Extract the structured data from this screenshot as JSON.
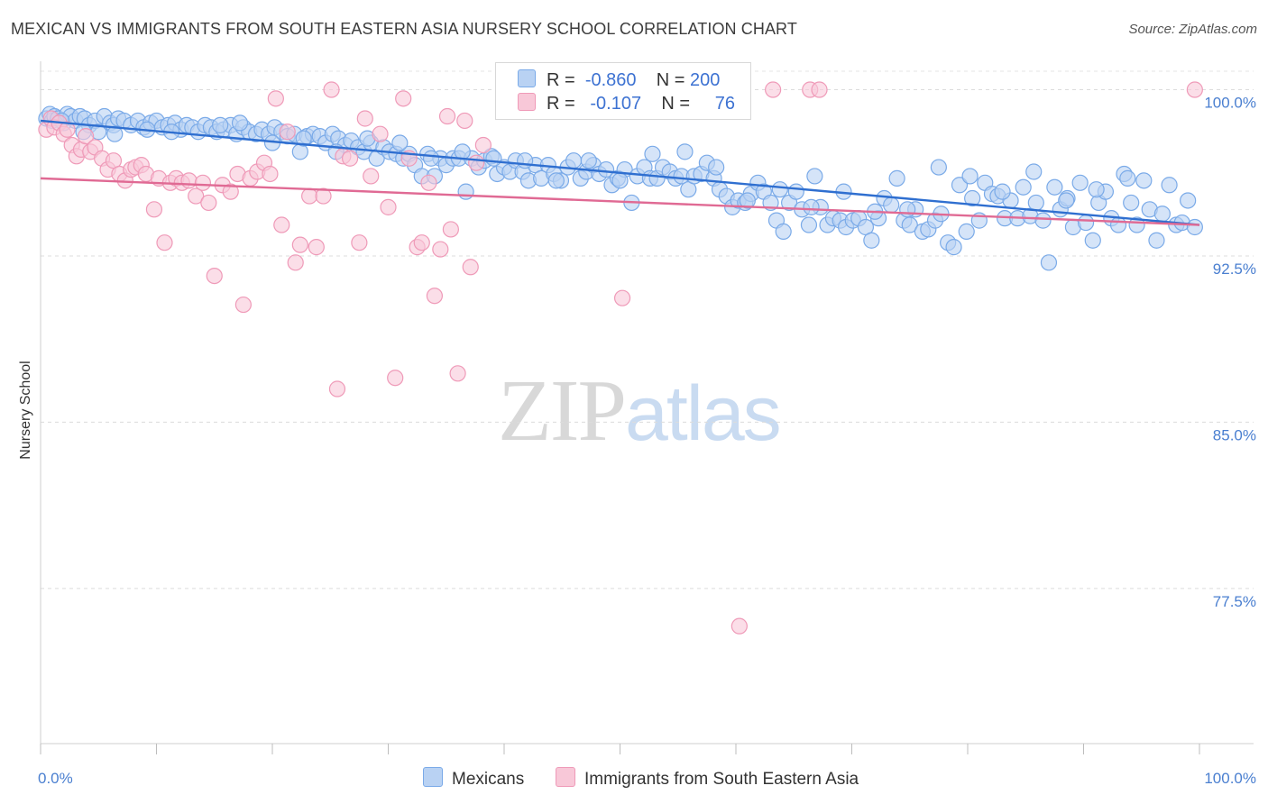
{
  "chart_data": {
    "type": "scatter",
    "title": "MEXICAN VS IMMIGRANTS FROM SOUTH EASTERN ASIA NURSERY SCHOOL CORRELATION CHART",
    "source": "Source: ZipAtlas.com",
    "xlabel": "",
    "ylabel": "Nursery School",
    "xlim": [
      0,
      100
    ],
    "ylim": [
      70.5,
      101.2
    ],
    "x_tick_labels": [
      "0.0%",
      "100.0%"
    ],
    "y_ticks": [
      77.5,
      85.0,
      92.5,
      100.0
    ],
    "y_tick_labels": [
      "77.5%",
      "85.0%",
      "92.5%",
      "100.0%"
    ],
    "legend_stats": [
      {
        "r_label": "R =",
        "r": "-0.860",
        "n_label": "N =",
        "n": "200"
      },
      {
        "r_label": "R =",
        "r": "-0.107",
        "n_label": "N =",
        "n": "76"
      }
    ],
    "watermark": {
      "zip": "ZIP",
      "atlas": "atlas"
    },
    "series": [
      {
        "name": "Mexicans",
        "color": "#7aaae8",
        "fill": "#b9d2f3",
        "line_color": "#2f6fd0",
        "trend": {
          "x": [
            0,
            100
          ],
          "y": [
            98.6,
            93.9
          ]
        },
        "points": [
          [
            0.5,
            98.7
          ],
          [
            0.8,
            98.9
          ],
          [
            1,
            98.6
          ],
          [
            1.2,
            98.8
          ],
          [
            1.5,
            98.7
          ],
          [
            2,
            98.5
          ],
          [
            2.3,
            98.9
          ],
          [
            2.6,
            98.8
          ],
          [
            3,
            98.6
          ],
          [
            3.4,
            98.8
          ],
          [
            3.8,
            98.7
          ],
          [
            4.2,
            98.4
          ],
          [
            4.7,
            98.6
          ],
          [
            5,
            98.1
          ],
          [
            5.5,
            98.8
          ],
          [
            6,
            98.5
          ],
          [
            6.3,
            98.4
          ],
          [
            6.7,
            98.7
          ],
          [
            7.2,
            98.6
          ],
          [
            7.8,
            98.4
          ],
          [
            8.4,
            98.6
          ],
          [
            8.9,
            98.3
          ],
          [
            9.5,
            98.5
          ],
          [
            10,
            98.6
          ],
          [
            10.5,
            98.3
          ],
          [
            11,
            98.4
          ],
          [
            11.6,
            98.5
          ],
          [
            12.1,
            98.2
          ],
          [
            12.6,
            98.4
          ],
          [
            13.1,
            98.3
          ],
          [
            13.6,
            98.1
          ],
          [
            14.2,
            98.4
          ],
          [
            14.7,
            98.3
          ],
          [
            15.2,
            98.1
          ],
          [
            15.8,
            98.2
          ],
          [
            16.4,
            98.4
          ],
          [
            16.9,
            98.0
          ],
          [
            17.5,
            98.3
          ],
          [
            18,
            98.1
          ],
          [
            18.6,
            98.0
          ],
          [
            19.1,
            98.2
          ],
          [
            19.7,
            98.0
          ],
          [
            20.2,
            98.3
          ],
          [
            20.8,
            98.1
          ],
          [
            21.3,
            97.9
          ],
          [
            21.9,
            98.0
          ],
          [
            22.4,
            97.2
          ],
          [
            23,
            97.9
          ],
          [
            23.5,
            98.0
          ],
          [
            24.1,
            97.9
          ],
          [
            24.6,
            97.6
          ],
          [
            25.2,
            98.0
          ],
          [
            25.7,
            97.8
          ],
          [
            26.3,
            97.5
          ],
          [
            26.8,
            97.7
          ],
          [
            27.4,
            97.4
          ],
          [
            27.9,
            97.2
          ],
          [
            28.5,
            97.6
          ],
          [
            29,
            96.9
          ],
          [
            29.6,
            97.4
          ],
          [
            30.1,
            97.2
          ],
          [
            30.7,
            97.1
          ],
          [
            31.3,
            96.9
          ],
          [
            31.8,
            97.1
          ],
          [
            32.3,
            96.6
          ],
          [
            32.9,
            96.1
          ],
          [
            33.4,
            97.1
          ],
          [
            34,
            96.1
          ],
          [
            34.5,
            96.9
          ],
          [
            35,
            96.6
          ],
          [
            35.6,
            96.9
          ],
          [
            36.1,
            96.9
          ],
          [
            36.7,
            95.4
          ],
          [
            37.2,
            96.9
          ],
          [
            37.8,
            96.5
          ],
          [
            38.3,
            96.8
          ],
          [
            38.9,
            97.0
          ],
          [
            39.4,
            96.2
          ],
          [
            40,
            96.5
          ],
          [
            40.5,
            96.3
          ],
          [
            41,
            96.8
          ],
          [
            41.6,
            96.3
          ],
          [
            42.1,
            95.9
          ],
          [
            42.7,
            96.6
          ],
          [
            43.2,
            96.0
          ],
          [
            43.8,
            96.6
          ],
          [
            44.3,
            96.2
          ],
          [
            44.9,
            95.9
          ],
          [
            45.5,
            96.5
          ],
          [
            46,
            96.8
          ],
          [
            46.6,
            96.0
          ],
          [
            47.1,
            96.3
          ],
          [
            47.7,
            96.6
          ],
          [
            48.2,
            96.2
          ],
          [
            48.8,
            96.4
          ],
          [
            49.3,
            95.7
          ],
          [
            49.8,
            96.0
          ],
          [
            50.4,
            96.4
          ],
          [
            51,
            94.9
          ],
          [
            51.5,
            96.1
          ],
          [
            52.1,
            96.5
          ],
          [
            52.6,
            96.0
          ],
          [
            53.2,
            96.0
          ],
          [
            53.7,
            96.5
          ],
          [
            54.3,
            96.3
          ],
          [
            54.8,
            96.0
          ],
          [
            55.3,
            96.1
          ],
          [
            55.9,
            95.5
          ],
          [
            56.4,
            96.1
          ],
          [
            57,
            96.2
          ],
          [
            57.5,
            96.7
          ],
          [
            58.1,
            96.0
          ],
          [
            58.6,
            95.5
          ],
          [
            59.2,
            95.2
          ],
          [
            59.7,
            94.7
          ],
          [
            60.2,
            95.0
          ],
          [
            60.8,
            94.9
          ],
          [
            61.3,
            95.3
          ],
          [
            61.9,
            95.8
          ],
          [
            62.4,
            95.4
          ],
          [
            63,
            94.9
          ],
          [
            63.5,
            94.1
          ],
          [
            64.1,
            93.6
          ],
          [
            64.6,
            94.9
          ],
          [
            65.2,
            95.4
          ],
          [
            65.7,
            94.6
          ],
          [
            66.3,
            93.9
          ],
          [
            66.8,
            96.1
          ],
          [
            67.3,
            94.7
          ],
          [
            67.9,
            93.9
          ],
          [
            68.4,
            94.2
          ],
          [
            69,
            94.1
          ],
          [
            69.5,
            93.8
          ],
          [
            70.1,
            94.1
          ],
          [
            70.6,
            94.2
          ],
          [
            71.2,
            93.8
          ],
          [
            71.7,
            93.2
          ],
          [
            72.3,
            94.2
          ],
          [
            72.8,
            95.1
          ],
          [
            73.4,
            94.8
          ],
          [
            73.9,
            96.0
          ],
          [
            74.5,
            94.1
          ],
          [
            75,
            93.9
          ],
          [
            75.5,
            94.6
          ],
          [
            76.1,
            93.6
          ],
          [
            76.6,
            93.7
          ],
          [
            77.2,
            94.1
          ],
          [
            77.7,
            94.4
          ],
          [
            78.3,
            93.1
          ],
          [
            78.8,
            92.9
          ],
          [
            79.3,
            95.7
          ],
          [
            79.9,
            93.6
          ],
          [
            80.4,
            95.1
          ],
          [
            81,
            94.1
          ],
          [
            81.5,
            95.8
          ],
          [
            82.1,
            95.3
          ],
          [
            82.6,
            95.2
          ],
          [
            83.2,
            94.2
          ],
          [
            83.7,
            95.0
          ],
          [
            84.3,
            94.2
          ],
          [
            84.8,
            95.6
          ],
          [
            85.4,
            94.3
          ],
          [
            85.9,
            94.9
          ],
          [
            86.5,
            94.1
          ],
          [
            87,
            92.2
          ],
          [
            87.5,
            95.6
          ],
          [
            88,
            94.6
          ],
          [
            88.6,
            95.1
          ],
          [
            89.1,
            93.8
          ],
          [
            89.7,
            95.8
          ],
          [
            90.2,
            94.0
          ],
          [
            90.8,
            93.2
          ],
          [
            91.3,
            94.9
          ],
          [
            91.9,
            95.4
          ],
          [
            92.4,
            94.2
          ],
          [
            93,
            93.9
          ],
          [
            93.5,
            96.2
          ],
          [
            94.1,
            94.9
          ],
          [
            94.6,
            93.9
          ],
          [
            95.2,
            95.9
          ],
          [
            95.7,
            94.6
          ],
          [
            96.3,
            93.2
          ],
          [
            96.8,
            94.4
          ],
          [
            97.4,
            95.7
          ],
          [
            98,
            93.9
          ],
          [
            98.5,
            94.0
          ],
          [
            99,
            95.0
          ],
          [
            99.6,
            93.8
          ],
          [
            1.8,
            98.6
          ],
          [
            3.7,
            98.1
          ],
          [
            6.4,
            98.0
          ],
          [
            9.2,
            98.2
          ],
          [
            11.3,
            98.1
          ],
          [
            15.5,
            98.4
          ],
          [
            17.2,
            98.5
          ],
          [
            20,
            97.6
          ],
          [
            22.7,
            97.8
          ],
          [
            25.5,
            97.2
          ],
          [
            28.2,
            97.8
          ],
          [
            31,
            97.6
          ],
          [
            33.7,
            96.9
          ],
          [
            36.4,
            97.2
          ],
          [
            39.1,
            96.9
          ],
          [
            41.8,
            96.8
          ],
          [
            44.5,
            95.9
          ],
          [
            47.3,
            96.8
          ],
          [
            50,
            95.9
          ],
          [
            52.8,
            97.1
          ],
          [
            55.6,
            97.2
          ],
          [
            58.3,
            96.5
          ],
          [
            61,
            95.0
          ],
          [
            63.8,
            95.5
          ],
          [
            66.5,
            94.7
          ],
          [
            69.3,
            95.4
          ],
          [
            72,
            94.5
          ],
          [
            74.8,
            94.6
          ],
          [
            77.5,
            96.5
          ],
          [
            80.2,
            96.1
          ],
          [
            83,
            95.4
          ],
          [
            85.7,
            96.3
          ],
          [
            88.5,
            95.0
          ],
          [
            91.1,
            95.5
          ],
          [
            93.8,
            96.0
          ]
        ]
      },
      {
        "name": "Immigrants from South Eastern Asia",
        "color": "#ef9ab8",
        "fill": "#f8c8d8",
        "line_color": "#e06a94",
        "trend": {
          "x": [
            0,
            100
          ],
          "y": [
            96.0,
            93.9
          ]
        },
        "points": [
          [
            0.5,
            98.2
          ],
          [
            0.9,
            98.7
          ],
          [
            1.2,
            98.3
          ],
          [
            1.6,
            98.5
          ],
          [
            2,
            98.0
          ],
          [
            2.3,
            98.2
          ],
          [
            2.7,
            97.5
          ],
          [
            3.1,
            97.0
          ],
          [
            3.5,
            97.3
          ],
          [
            3.9,
            97.9
          ],
          [
            4.3,
            97.2
          ],
          [
            4.7,
            97.4
          ],
          [
            5.3,
            96.9
          ],
          [
            5.8,
            96.4
          ],
          [
            6.3,
            96.8
          ],
          [
            6.8,
            96.2
          ],
          [
            7.3,
            95.9
          ],
          [
            7.8,
            96.4
          ],
          [
            8.2,
            96.5
          ],
          [
            8.7,
            96.6
          ],
          [
            9.1,
            96.2
          ],
          [
            9.8,
            94.6
          ],
          [
            10.2,
            96.0
          ],
          [
            10.7,
            93.1
          ],
          [
            11.2,
            95.8
          ],
          [
            11.7,
            96.0
          ],
          [
            12.2,
            95.8
          ],
          [
            12.8,
            95.9
          ],
          [
            13.4,
            95.2
          ],
          [
            14,
            95.8
          ],
          [
            14.5,
            94.9
          ],
          [
            15,
            91.6
          ],
          [
            15.7,
            95.7
          ],
          [
            16.4,
            95.4
          ],
          [
            17,
            96.2
          ],
          [
            17.5,
            90.3
          ],
          [
            18.1,
            96.0
          ],
          [
            18.7,
            96.3
          ],
          [
            19.3,
            96.7
          ],
          [
            19.8,
            96.2
          ],
          [
            20.3,
            99.6
          ],
          [
            20.8,
            93.9
          ],
          [
            21.3,
            98.1
          ],
          [
            22,
            92.2
          ],
          [
            22.4,
            93.0
          ],
          [
            23.2,
            95.2
          ],
          [
            23.8,
            92.9
          ],
          [
            24.4,
            95.2
          ],
          [
            25.1,
            100.0
          ],
          [
            25.6,
            86.5
          ],
          [
            26.1,
            97.0
          ],
          [
            26.7,
            96.9
          ],
          [
            27.5,
            93.1
          ],
          [
            28,
            98.7
          ],
          [
            28.5,
            96.1
          ],
          [
            29.3,
            98.0
          ],
          [
            30,
            94.7
          ],
          [
            30.6,
            87.0
          ],
          [
            31.3,
            99.6
          ],
          [
            31.8,
            96.9
          ],
          [
            32.5,
            92.9
          ],
          [
            32.9,
            93.1
          ],
          [
            33.5,
            95.8
          ],
          [
            34,
            90.7
          ],
          [
            34.5,
            92.8
          ],
          [
            35.1,
            98.8
          ],
          [
            35.4,
            93.7
          ],
          [
            36,
            87.2
          ],
          [
            36.6,
            98.6
          ],
          [
            37.1,
            92.0
          ],
          [
            37.6,
            96.7
          ],
          [
            38.2,
            97.5
          ],
          [
            50.2,
            90.6
          ],
          [
            60.3,
            75.8
          ],
          [
            63.2,
            100.0
          ],
          [
            66.4,
            100.0
          ],
          [
            67.2,
            100.0
          ],
          [
            99.6,
            100.0
          ]
        ]
      }
    ]
  }
}
